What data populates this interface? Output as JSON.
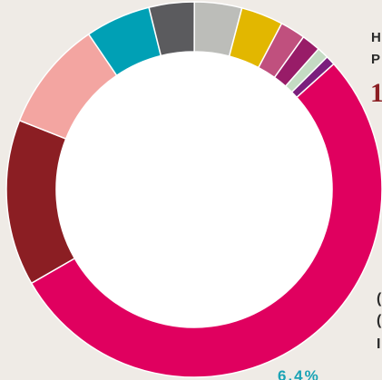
{
  "chart_data": {
    "type": "pie",
    "donut": true,
    "values": [
      58.9,
      15.8,
      10.5,
      6.2,
      4.3,
      4.5,
      4.0,
      2.4,
      1.8,
      1.1,
      0.9
    ],
    "colors": [
      "#e0005f",
      "#8b1e23",
      "#f3a5a1",
      "#00a0b5",
      "#5b5b5e",
      "#bcbdb9",
      "#e2b700",
      "#c0507e",
      "#981c68",
      "#c4dbc3",
      "#7b1f7d"
    ],
    "title": "",
    "legend": "none",
    "annotations": {
      "header_line_1": "H",
      "header_line_2": "P",
      "big_number": "1",
      "side_line_1": "(",
      "side_line_2": "(",
      "side_line_3": "I",
      "bottom_value": "6.4%"
    }
  }
}
